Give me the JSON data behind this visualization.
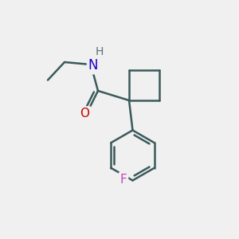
{
  "background_color": "#f0f0f0",
  "bond_color": "#3a5a5a",
  "bond_width": 1.8,
  "atom_colors": {
    "N": "#1a00cc",
    "O": "#cc0000",
    "F": "#cc44bb",
    "H": "#5a7070",
    "C": "#3a5a5a"
  },
  "figsize": [
    3.0,
    3.0
  ],
  "dpi": 100
}
